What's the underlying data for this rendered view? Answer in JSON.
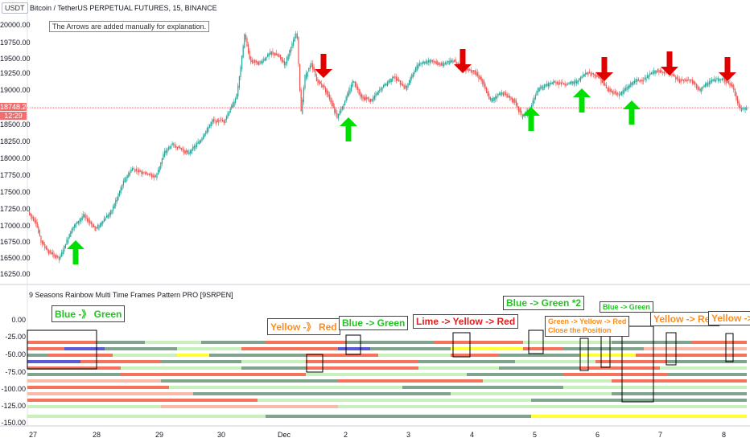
{
  "header": {
    "currency": "USDT",
    "symbol_title": "Bitcoin / TetherUS PERPETUAL FUTURES, 15, BINANCE",
    "note": "The Arrows are added manually for explanation."
  },
  "price_axis": {
    "labels": [
      "20000.00",
      "19750.00",
      "19500.00",
      "19250.00",
      "19000.00",
      "18750.00",
      "18500.00",
      "18250.00",
      "18000.00",
      "17750.00",
      "17500.00",
      "17250.00",
      "17000.00",
      "16750.00",
      "16500.00",
      "16250.00"
    ],
    "last_price": "18748.20",
    "countdown": "12:29"
  },
  "indicator": {
    "title": "9 Seasons Rainbow Multi Time Frames Pattern PRO [9SRPEN]",
    "axis_labels": [
      "0.00",
      "-25.00",
      "-50.00",
      "-75.00",
      "-100.00",
      "-125.00",
      "-150.00"
    ]
  },
  "time_axis": {
    "labels": [
      "27",
      "28",
      "29",
      "30",
      "Dec",
      "2",
      "3",
      "4",
      "5",
      "6",
      "7",
      "8"
    ]
  },
  "annotations": [
    {
      "text": "Blue -》 Green",
      "color": "#22c322"
    },
    {
      "text": "Yellow -》 Red",
      "color": "#ff8c1a"
    },
    {
      "text": "Blue -> Green",
      "color": "#22c322"
    },
    {
      "text": "Lime -> Yellow -> Red",
      "color": "#e02020"
    },
    {
      "text": "Blue -> Green *2",
      "color": "#22c322"
    },
    {
      "text": "Blue -> Green",
      "color": "#22c322"
    },
    {
      "text": "Green -> Yellow -> Red",
      "color": "#ff8c1a"
    },
    {
      "text": "Close the Position",
      "color": "#ff8c1a"
    },
    {
      "text": "Yellow -> Red",
      "color": "#ff8c1a"
    },
    {
      "text": "Yellow ->",
      "color": "#ff8c1a"
    }
  ],
  "colors": {
    "up_arrow": "#00e000",
    "down_arrow": "#e00000",
    "candle_up": "#26a69a",
    "candle_down": "#ef5350",
    "band_red": "#f5735a",
    "band_pink": "#f9b9a8",
    "band_lightgreen": "#c7f0bd",
    "band_gray": "#7fa38c",
    "band_yellow": "#ffff33",
    "band_blue": "#5a5ad6"
  }
}
